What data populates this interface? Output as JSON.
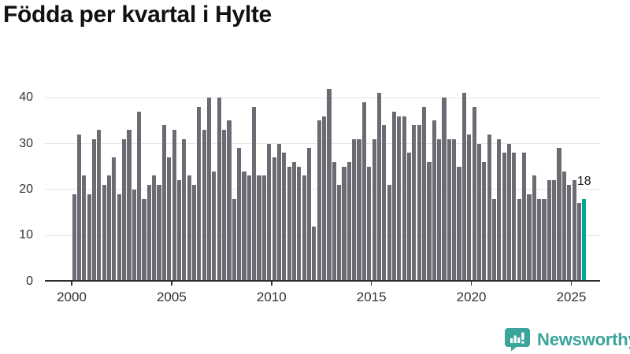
{
  "title": "Födda per kvartal i Hylte",
  "chart_data": {
    "type": "bar",
    "title": "Födda per kvartal i Hylte",
    "x_start": "2000 Q1",
    "x_end": "2025 Q3",
    "values": [
      19,
      32,
      23,
      19,
      31,
      33,
      21,
      23,
      27,
      19,
      31,
      33,
      20,
      37,
      18,
      21,
      23,
      21,
      34,
      27,
      33,
      22,
      31,
      23,
      21,
      38,
      33,
      40,
      24,
      40,
      33,
      35,
      18,
      29,
      24,
      23,
      38,
      23,
      23,
      30,
      27,
      30,
      28,
      25,
      26,
      25,
      23,
      29,
      12,
      35,
      36,
      42,
      26,
      21,
      25,
      26,
      31,
      31,
      39,
      25,
      31,
      41,
      34,
      21,
      37,
      36,
      36,
      28,
      34,
      34,
      38,
      26,
      35,
      31,
      40,
      31,
      31,
      25,
      41,
      32,
      38,
      30,
      26,
      32,
      18,
      31,
      28,
      30,
      28,
      18,
      28,
      19,
      23,
      18,
      18,
      22,
      22,
      29,
      24,
      21,
      22,
      17,
      18
    ],
    "x_tick_labels": [
      "2000",
      "2005",
      "2010",
      "2015",
      "2020",
      "2025"
    ],
    "y_ticks": [
      0,
      10,
      20,
      30,
      40
    ],
    "y_tick_labels": [
      "0",
      "10",
      "20",
      "30",
      "40"
    ],
    "ylim": [
      0,
      43
    ],
    "grid": true,
    "legend": "none",
    "bar_color": "#6b6b73",
    "highlight_color": "#00a29a",
    "highlight_index": 102,
    "highlight_label": "18"
  },
  "footer": {
    "brand": "Newsworthy",
    "logo_icon": "bar-chart-speech-bubble-icon",
    "brand_color": "#3ba49b"
  },
  "colors": {
    "background": "#ffffff",
    "axis": "#2e2e2e",
    "grid": "#e5e5e5",
    "tick_text": "#333333",
    "title_text": "#111111"
  }
}
